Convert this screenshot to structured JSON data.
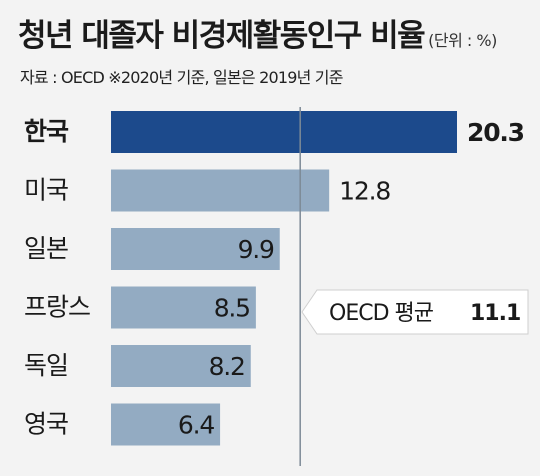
{
  "header": {
    "title": "청년 대졸자 비경제활동인구 비율",
    "unit": "(단위 : %)",
    "source": "자료 : OECD   ※2020년 기준, 일본은 2019년 기준"
  },
  "chart_data": {
    "type": "bar",
    "orientation": "horizontal",
    "categories": [
      "한국",
      "미국",
      "일본",
      "프랑스",
      "독일",
      "영국"
    ],
    "values": [
      20.3,
      12.8,
      9.9,
      8.5,
      8.2,
      6.4
    ],
    "value_labels": [
      "20.3",
      "12.8",
      "9.9",
      "8.5",
      "8.2",
      "6.4"
    ],
    "reference_line": {
      "label": "OECD 평균",
      "value": 11.1,
      "value_label": "11.1"
    },
    "colors": {
      "highlight": "#1c4a8c",
      "bar": "#93abc2",
      "reference": "#7d8a96",
      "background": "#f3f3f3"
    },
    "xlim": [
      0,
      20.3
    ]
  }
}
